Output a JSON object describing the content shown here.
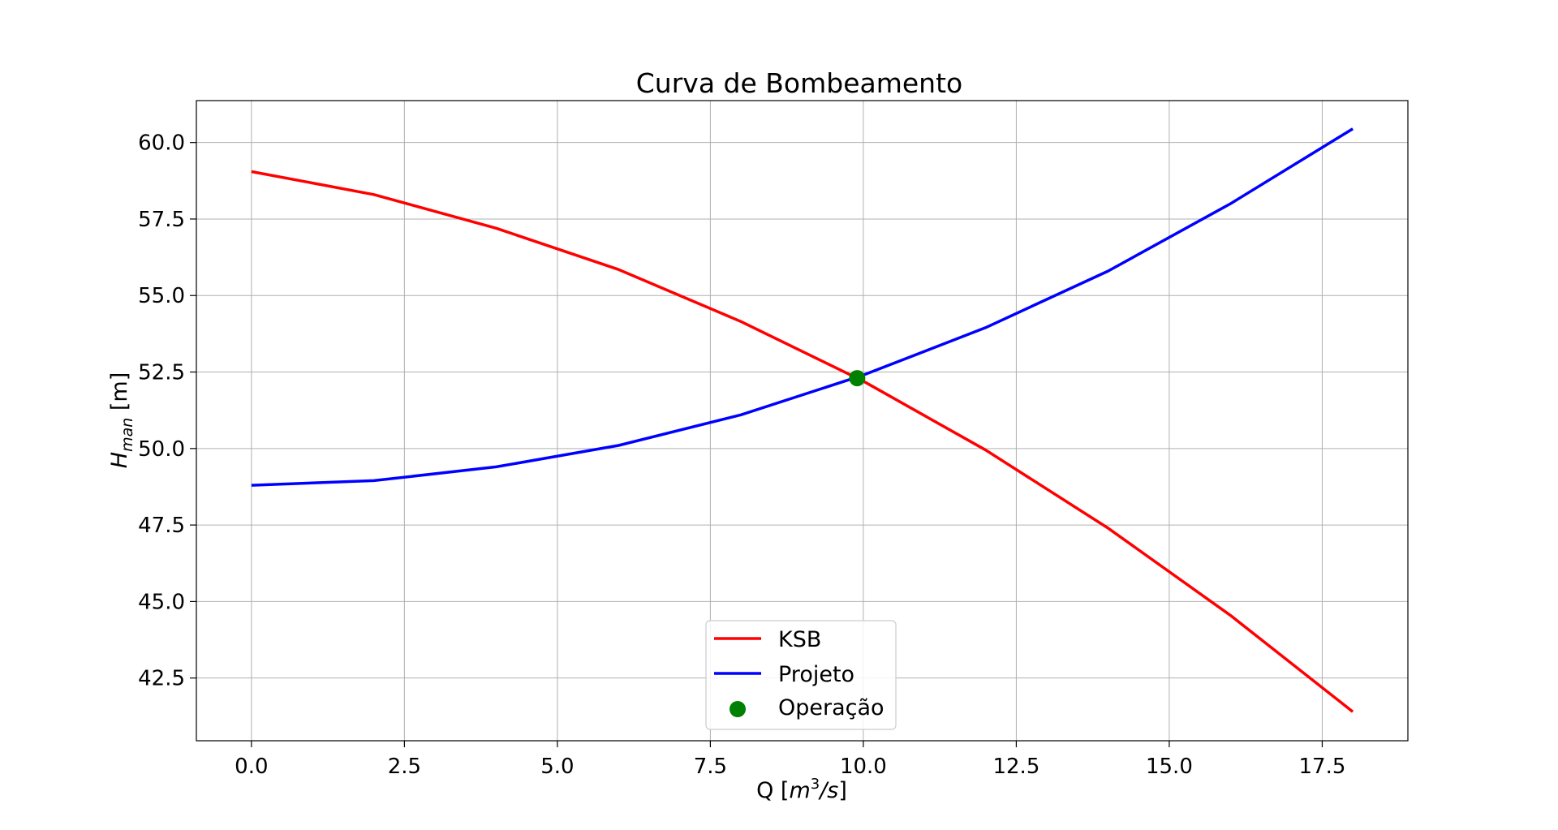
{
  "chart_data": {
    "type": "line",
    "title": "Curva de Bombeamento",
    "xlabel": "Q [m³/s]",
    "ylabel": "H_man [m]",
    "xlim": [
      -0.9,
      18.9
    ],
    "ylim": [
      40.45,
      61.37
    ],
    "grid": true,
    "legend_position": "lower center",
    "x_ticks": [
      0.0,
      2.5,
      5.0,
      7.5,
      10.0,
      12.5,
      15.0,
      17.5
    ],
    "x_tick_labels": [
      "0.0",
      "2.5",
      "5.0",
      "7.5",
      "10.0",
      "12.5",
      "15.0",
      "17.5"
    ],
    "y_ticks": [
      42.5,
      45.0,
      47.5,
      50.0,
      52.5,
      55.0,
      57.5,
      60.0
    ],
    "y_tick_labels": [
      "42.5",
      "45.0",
      "47.5",
      "50.0",
      "52.5",
      "55.0",
      "57.5",
      "60.0"
    ],
    "series": [
      {
        "name": "KSB",
        "color": "#ff0000",
        "x": [
          0,
          2,
          4,
          6,
          8,
          10,
          12,
          14,
          16,
          18
        ],
        "y": [
          59.05,
          58.3,
          57.2,
          55.85,
          54.15,
          52.2,
          49.95,
          47.4,
          44.55,
          41.4
        ]
      },
      {
        "name": "Projeto",
        "color": "#0000ff",
        "x": [
          0,
          2,
          4,
          6,
          8,
          10,
          12,
          14,
          16,
          18
        ],
        "y": [
          48.8,
          48.95,
          49.4,
          50.1,
          51.1,
          52.4,
          53.95,
          55.8,
          58.0,
          60.45
        ]
      }
    ],
    "points": [
      {
        "name": "Operação",
        "color": "#008000",
        "x": 9.9,
        "y": 52.3
      }
    ]
  }
}
